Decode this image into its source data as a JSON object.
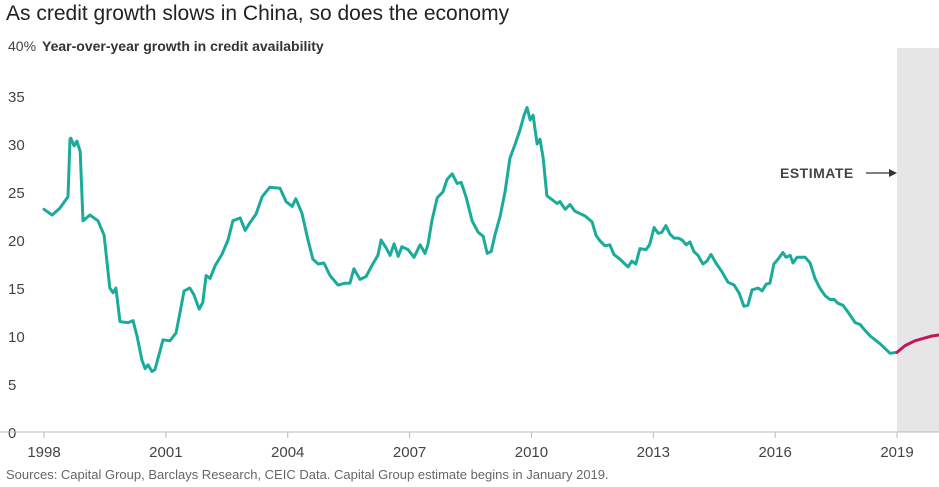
{
  "chart_data": {
    "type": "line",
    "title": "As credit growth slows in China, so does the economy",
    "ylabel": "Year-over-year growth in credit availability",
    "y_top_label": "40%",
    "ylim": [
      0,
      40
    ],
    "yticks": [
      "0",
      "5",
      "10",
      "15",
      "20",
      "25",
      "30",
      "35"
    ],
    "ytick_values": [
      0,
      5,
      10,
      15,
      20,
      25,
      30,
      35
    ],
    "xlim": [
      1998,
      2020
    ],
    "xticks": [
      "1998",
      "2001",
      "2004",
      "2007",
      "2010",
      "2013",
      "2016",
      "2019"
    ],
    "xtick_values": [
      1998,
      2001,
      2004,
      2007,
      2010,
      2013,
      2016,
      2019
    ],
    "grid": false,
    "annotation": "ESTIMATE",
    "estimate_start": 2019,
    "source": "Sources: Capital Group, Barclays Research, CEIC Data. Capital Group estimate begins in January 2019.",
    "colors": {
      "actual": "#1aab9b",
      "estimate": "#c2185b",
      "estimate_band": "#e6e6e6"
    },
    "series": [
      {
        "kind": "actual",
        "points": [
          [
            1998.0,
            23.2
          ],
          [
            1998.2,
            22.6
          ],
          [
            1998.39,
            23.3
          ],
          [
            1998.59,
            24.5
          ],
          [
            1998.64,
            30.5
          ],
          [
            1998.66,
            30.6
          ],
          [
            1998.74,
            29.8
          ],
          [
            1998.81,
            30.3
          ],
          [
            1998.89,
            29.2
          ],
          [
            1998.96,
            22.0
          ],
          [
            1999.13,
            22.6
          ],
          [
            1999.33,
            22.0
          ],
          [
            1999.48,
            20.5
          ],
          [
            1999.62,
            15.0
          ],
          [
            1999.7,
            14.5
          ],
          [
            1999.77,
            15.0
          ],
          [
            1999.87,
            11.5
          ],
          [
            2000.07,
            11.4
          ],
          [
            2000.19,
            11.6
          ],
          [
            2000.29,
            10.0
          ],
          [
            2000.41,
            7.5
          ],
          [
            2000.49,
            6.6
          ],
          [
            2000.56,
            7.0
          ],
          [
            2000.66,
            6.3
          ],
          [
            2000.73,
            6.5
          ],
          [
            2000.86,
            8.5
          ],
          [
            2000.93,
            9.6
          ],
          [
            2001.1,
            9.5
          ],
          [
            2001.25,
            10.3
          ],
          [
            2001.35,
            12.5
          ],
          [
            2001.45,
            14.7
          ],
          [
            2001.59,
            15.0
          ],
          [
            2001.69,
            14.3
          ],
          [
            2001.82,
            12.8
          ],
          [
            2001.91,
            13.5
          ],
          [
            2001.99,
            16.3
          ],
          [
            2002.09,
            16.0
          ],
          [
            2002.21,
            17.3
          ],
          [
            2002.38,
            18.5
          ],
          [
            2002.53,
            20.0
          ],
          [
            2002.65,
            22.0
          ],
          [
            2002.83,
            22.3
          ],
          [
            2002.95,
            21.0
          ],
          [
            2003.07,
            21.8
          ],
          [
            2003.22,
            22.7
          ],
          [
            2003.37,
            24.5
          ],
          [
            2003.56,
            25.5
          ],
          [
            2003.81,
            25.4
          ],
          [
            2003.96,
            24.0
          ],
          [
            2004.11,
            23.5
          ],
          [
            2004.2,
            24.3
          ],
          [
            2004.35,
            22.8
          ],
          [
            2004.5,
            20.0
          ],
          [
            2004.62,
            18.0
          ],
          [
            2004.75,
            17.5
          ],
          [
            2004.89,
            17.6
          ],
          [
            2005.04,
            16.3
          ],
          [
            2005.24,
            15.3
          ],
          [
            2005.41,
            15.5
          ],
          [
            2005.53,
            15.5
          ],
          [
            2005.63,
            17.0
          ],
          [
            2005.78,
            15.9
          ],
          [
            2005.93,
            16.2
          ],
          [
            2006.08,
            17.4
          ],
          [
            2006.22,
            18.4
          ],
          [
            2006.3,
            20.0
          ],
          [
            2006.42,
            19.2
          ],
          [
            2006.52,
            18.4
          ],
          [
            2006.62,
            19.6
          ],
          [
            2006.72,
            18.3
          ],
          [
            2006.81,
            19.3
          ],
          [
            2006.96,
            19.0
          ],
          [
            2007.11,
            18.2
          ],
          [
            2007.26,
            19.5
          ],
          [
            2007.38,
            18.6
          ],
          [
            2007.45,
            19.5
          ],
          [
            2007.55,
            22.0
          ],
          [
            2007.68,
            24.4
          ],
          [
            2007.82,
            25.0
          ],
          [
            2007.92,
            26.3
          ],
          [
            2008.05,
            26.9
          ],
          [
            2008.17,
            25.9
          ],
          [
            2008.27,
            26.0
          ],
          [
            2008.39,
            24.5
          ],
          [
            2008.54,
            22.0
          ],
          [
            2008.69,
            20.8
          ],
          [
            2008.81,
            20.4
          ],
          [
            2008.91,
            18.6
          ],
          [
            2009.01,
            18.8
          ],
          [
            2009.1,
            20.5
          ],
          [
            2009.23,
            22.5
          ],
          [
            2009.35,
            25.0
          ],
          [
            2009.47,
            28.5
          ],
          [
            2009.6,
            30.0
          ],
          [
            2009.72,
            31.5
          ],
          [
            2009.82,
            33.0
          ],
          [
            2009.89,
            33.8
          ],
          [
            2009.97,
            32.5
          ],
          [
            2010.04,
            33.0
          ],
          [
            2010.14,
            30.0
          ],
          [
            2010.21,
            30.5
          ],
          [
            2010.29,
            28.5
          ],
          [
            2010.38,
            24.6
          ],
          [
            2010.51,
            24.2
          ],
          [
            2010.63,
            23.8
          ],
          [
            2010.7,
            24.0
          ],
          [
            2010.83,
            23.2
          ],
          [
            2010.95,
            23.7
          ],
          [
            2011.07,
            23.0
          ],
          [
            2011.32,
            22.5
          ],
          [
            2011.49,
            21.9
          ],
          [
            2011.59,
            20.5
          ],
          [
            2011.69,
            19.9
          ],
          [
            2011.81,
            19.4
          ],
          [
            2011.93,
            19.5
          ],
          [
            2012.03,
            18.5
          ],
          [
            2012.18,
            18.0
          ],
          [
            2012.3,
            17.5
          ],
          [
            2012.38,
            17.2
          ],
          [
            2012.47,
            17.8
          ],
          [
            2012.57,
            17.5
          ],
          [
            2012.67,
            19.1
          ],
          [
            2012.82,
            19.0
          ],
          [
            2012.91,
            19.5
          ],
          [
            2013.02,
            21.3
          ],
          [
            2013.12,
            20.7
          ],
          [
            2013.21,
            20.8
          ],
          [
            2013.31,
            21.5
          ],
          [
            2013.41,
            20.6
          ],
          [
            2013.51,
            20.2
          ],
          [
            2013.61,
            20.2
          ],
          [
            2013.71,
            20.0
          ],
          [
            2013.81,
            19.5
          ],
          [
            2013.9,
            19.8
          ],
          [
            2014.0,
            18.8
          ],
          [
            2014.1,
            18.4
          ],
          [
            2014.22,
            17.5
          ],
          [
            2014.32,
            17.8
          ],
          [
            2014.42,
            18.5
          ],
          [
            2014.54,
            17.6
          ],
          [
            2014.69,
            16.7
          ],
          [
            2014.84,
            15.6
          ],
          [
            2014.99,
            15.3
          ],
          [
            2015.11,
            14.5
          ],
          [
            2015.23,
            13.1
          ],
          [
            2015.33,
            13.2
          ],
          [
            2015.43,
            14.8
          ],
          [
            2015.58,
            15.0
          ],
          [
            2015.68,
            14.7
          ],
          [
            2015.78,
            15.4
          ],
          [
            2015.87,
            15.5
          ],
          [
            2015.97,
            17.5
          ],
          [
            2016.07,
            18.0
          ],
          [
            2016.19,
            18.7
          ],
          [
            2016.27,
            18.2
          ],
          [
            2016.37,
            18.4
          ],
          [
            2016.44,
            17.6
          ],
          [
            2016.54,
            18.2
          ],
          [
            2016.74,
            18.2
          ],
          [
            2016.86,
            17.6
          ],
          [
            2016.98,
            16.0
          ],
          [
            2017.1,
            15.0
          ],
          [
            2017.23,
            14.2
          ],
          [
            2017.35,
            13.8
          ],
          [
            2017.45,
            13.8
          ],
          [
            2017.55,
            13.4
          ],
          [
            2017.67,
            13.2
          ],
          [
            2017.79,
            12.5
          ],
          [
            2017.97,
            11.4
          ],
          [
            2018.09,
            11.2
          ],
          [
            2018.21,
            10.6
          ],
          [
            2018.34,
            10.0
          ],
          [
            2018.58,
            9.2
          ],
          [
            2018.83,
            8.2
          ],
          [
            2019.0,
            8.3
          ]
        ]
      },
      {
        "kind": "estimate",
        "points": [
          [
            2019.0,
            8.3
          ],
          [
            2019.2,
            9.0
          ],
          [
            2019.44,
            9.5
          ],
          [
            2019.69,
            9.8
          ],
          [
            2019.86,
            10.0
          ],
          [
            2020.03,
            10.1
          ]
        ]
      }
    ]
  }
}
